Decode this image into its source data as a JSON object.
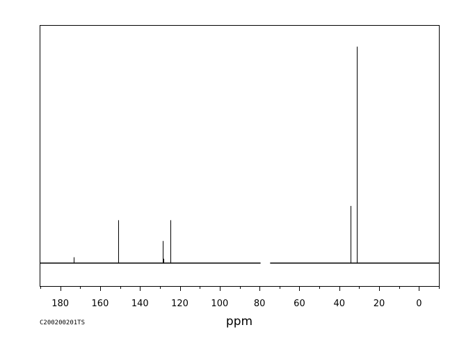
{
  "chart_data": {
    "type": "line",
    "xlabel": "ppm",
    "ylabel": "",
    "xlim": [
      190,
      -10
    ],
    "x_reversed": true,
    "ylim": [
      0,
      1
    ],
    "grid": false,
    "ticks": {
      "major": [
        180,
        160,
        140,
        120,
        100,
        80,
        60,
        40,
        20,
        0
      ],
      "major_labels": [
        "180",
        "160",
        "140",
        "120",
        "100",
        "80",
        "60",
        "40",
        "20",
        "0"
      ],
      "minor_step": 10
    },
    "peaks": [
      {
        "ppm": 173.2,
        "intensity": 0.027
      },
      {
        "ppm": 150.9,
        "intensity": 0.198
      },
      {
        "ppm": 128.7,
        "intensity": 0.102
      },
      {
        "ppm": 128.3,
        "intensity": 0.02
      },
      {
        "ppm": 124.8,
        "intensity": 0.198
      },
      {
        "ppm": 34.4,
        "intensity": 0.264
      },
      {
        "ppm": 31.3,
        "intensity": 1.0
      }
    ],
    "baseline_gap": [
      79.5,
      74.7
    ],
    "annotation": "C200200201TS"
  }
}
